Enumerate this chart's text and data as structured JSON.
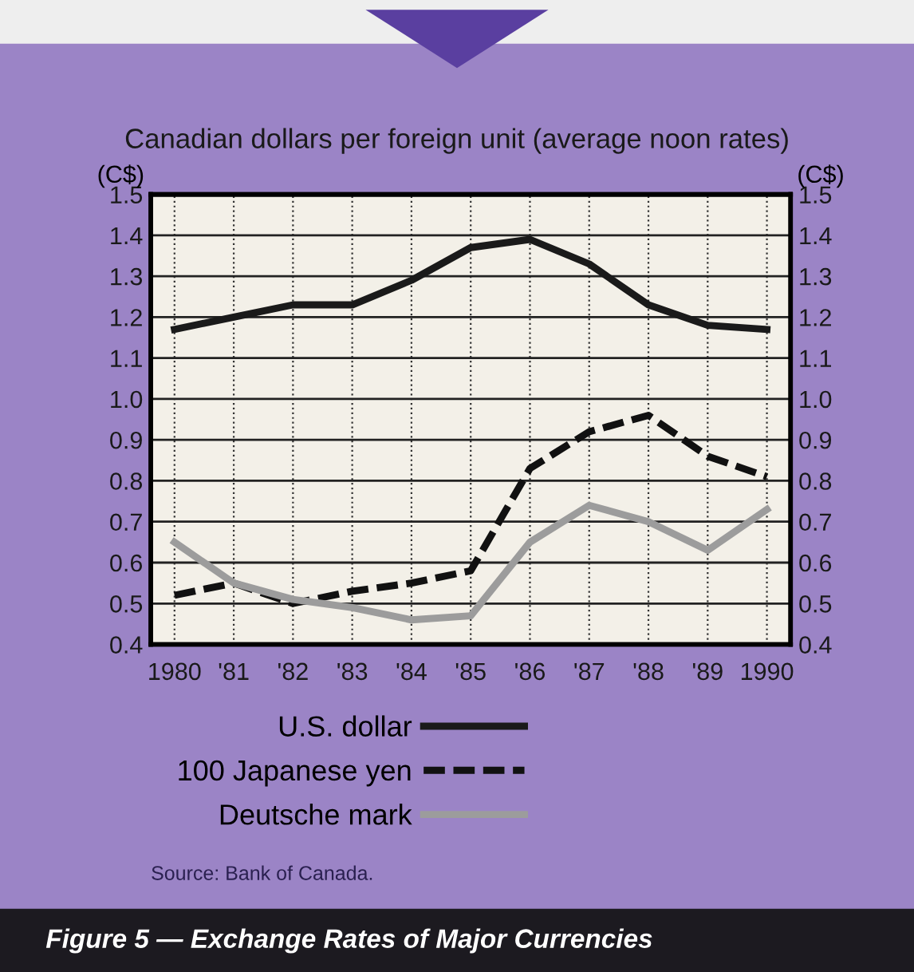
{
  "chart_data": {
    "type": "line",
    "title": "Figure 5 — Exchange Rates of Major Currencies",
    "subtitle": "Canadian dollars per foreign unit (average noon rates)",
    "ylabel": "(C$)",
    "y2label": "(C$)",
    "x": [
      1980,
      1981,
      1982,
      1983,
      1984,
      1985,
      1986,
      1987,
      1988,
      1989,
      1990
    ],
    "series": [
      {
        "name": "U.S. dollar",
        "color": "#1a1a1a",
        "line_style": "solid",
        "values": [
          1.17,
          1.2,
          1.23,
          1.23,
          1.29,
          1.37,
          1.39,
          1.33,
          1.23,
          1.18,
          1.17
        ]
      },
      {
        "name": "100 Japanese yen",
        "color": "#111111",
        "line_style": "dashed",
        "values": [
          0.52,
          0.55,
          0.5,
          0.53,
          0.55,
          0.58,
          0.83,
          0.92,
          0.96,
          0.86,
          0.81
        ]
      },
      {
        "name": "Deutsche mark",
        "color": "#9c9c9c",
        "line_style": "solid",
        "values": [
          0.65,
          0.55,
          0.51,
          0.49,
          0.46,
          0.47,
          0.65,
          0.74,
          0.7,
          0.63,
          0.73
        ]
      }
    ],
    "xlim": [
      1979.6,
      1990.4
    ],
    "xticks": [
      {
        "value": 1980,
        "label": "1980"
      },
      {
        "value": 1981,
        "label": "'81"
      },
      {
        "value": 1982,
        "label": "'82"
      },
      {
        "value": 1983,
        "label": "'83"
      },
      {
        "value": 1984,
        "label": "'84"
      },
      {
        "value": 1985,
        "label": "'85"
      },
      {
        "value": 1986,
        "label": "'86"
      },
      {
        "value": 1987,
        "label": "'87"
      },
      {
        "value": 1988,
        "label": "'88"
      },
      {
        "value": 1989,
        "label": "'89"
      },
      {
        "value": 1990,
        "label": "1990"
      }
    ],
    "ylim": [
      0.4,
      1.5
    ],
    "yticks": [
      0.4,
      0.5,
      0.6,
      0.7,
      0.8,
      0.9,
      {
        "value": 1,
        "label": "1.0"
      },
      1.1,
      1.2,
      1.3,
      1.4,
      1.5
    ],
    "y2lim": [
      0.4,
      1.5
    ],
    "y2ticks": [
      0.4,
      0.5,
      0.6,
      0.7,
      0.8,
      0.9,
      {
        "value": 1,
        "label": "1.0"
      },
      1.1,
      1.2,
      1.3,
      1.4,
      1.5
    ],
    "grid": true,
    "legend": "bottom",
    "marker": "none",
    "annotations": [
      "Source: Bank of Canada."
    ]
  }
}
